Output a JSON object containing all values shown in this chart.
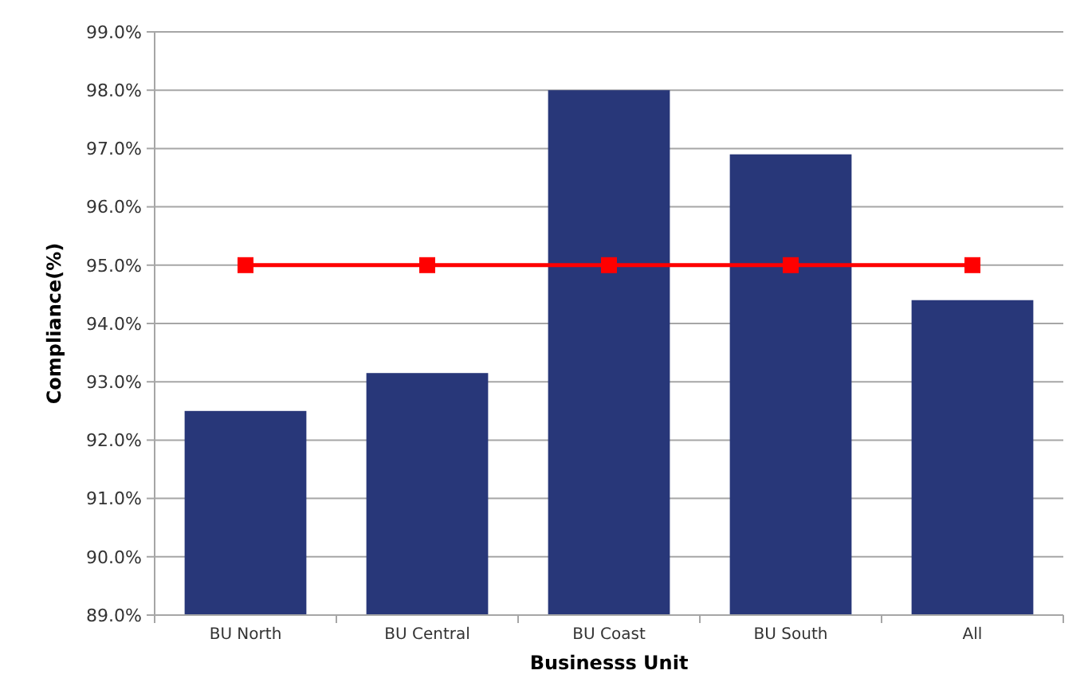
{
  "chart_data": {
    "type": "bar",
    "xlabel": "Businesss Unit",
    "ylabel": "Compliance(%)",
    "categories": [
      "BU North",
      "BU Central",
      "BU Coast",
      "BU South",
      "All"
    ],
    "series": [
      {
        "color": "#283779",
        "values": [
          92.5,
          93.15,
          98.0,
          96.9,
          94.4
        ]
      },
      {
        "type": "line",
        "color": "#ff0000",
        "values": [
          95,
          95,
          95,
          95,
          95
        ],
        "marker": "square",
        "line_style": "solid"
      }
    ],
    "ylim": [
      89,
      99
    ],
    "yticks": [
      {
        "value": 89,
        "label": "89.0%"
      },
      {
        "value": 90,
        "label": "90.0%"
      },
      {
        "value": 91,
        "label": "91.0%"
      },
      {
        "value": 92,
        "label": "92.0%"
      },
      {
        "value": 93,
        "label": "93.0%"
      },
      {
        "value": 94,
        "label": "94.0%"
      },
      {
        "value": 95,
        "label": "95.0%"
      },
      {
        "value": 96,
        "label": "96.0%"
      },
      {
        "value": 97,
        "label": "97.0%"
      },
      {
        "value": 98,
        "label": "98.0%"
      },
      {
        "value": 99,
        "label": "99.0%"
      }
    ],
    "grid": "y"
  }
}
